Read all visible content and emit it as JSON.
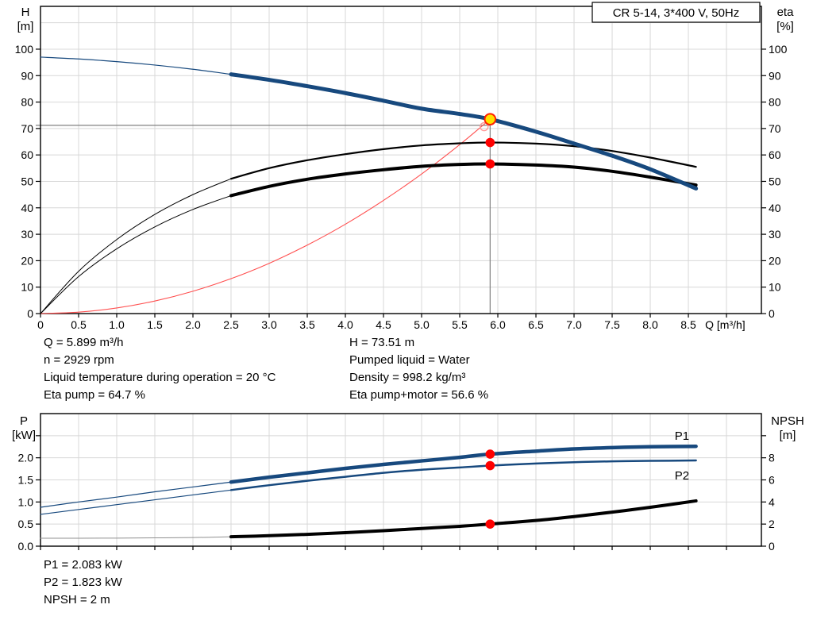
{
  "info_block": {
    "left": [
      "Q = 5.899 m³/h",
      "n = 2929 rpm",
      "Liquid temperature during operation = 20 °C",
      "Eta pump = 64.7 %"
    ],
    "right": [
      "H = 73.51 m",
      "Pumped liquid = Water",
      "Density = 998.2 kg/m³",
      "Eta pump+motor = 56.6 %"
    ]
  },
  "result_block": [
    "P1 = 2.083 kW",
    "P2 = 1.823 kW",
    "NPSH = 2 m"
  ],
  "colors": {
    "pump_blue": "#17497E",
    "label_blue": "#2E6DB4",
    "grid": "#D8D8D8",
    "crosshair": "#808080",
    "system_red": "#FF5050",
    "dot_red": "#FF0000",
    "duty_yellow": "#FFE000"
  },
  "chart_data": [
    {
      "type": "line",
      "title_box": "CR 5-14, 3*400 V, 50Hz",
      "xlabel": "Q [m³/h]",
      "xlabel_pos": 8.72,
      "ylabel_left_lines": [
        "H",
        "[m]"
      ],
      "ylabel_right_lines": [
        "eta",
        "[%]"
      ],
      "xlim": [
        0,
        9.458
      ],
      "ylim_left": [
        0,
        116.2
      ],
      "ylim_right": [
        0,
        116.2
      ],
      "grid": true,
      "grid_color": "#D8D8D8",
      "x_ticks": {
        "values": [
          0,
          0.5,
          1,
          1.5,
          2,
          2.5,
          3,
          3.5,
          4,
          4.5,
          5,
          5.5,
          6,
          6.5,
          7,
          7.5,
          8,
          8.5,
          9
        ],
        "labels": [
          "0",
          "0.5",
          "1.0",
          "1.5",
          "2.0",
          "2.5",
          "3.0",
          "3.5",
          "4.0",
          "4.5",
          "5.0",
          "5.5",
          "6.0",
          "6.5",
          "7.0",
          "7.5",
          "8.0",
          "8.5",
          ""
        ]
      },
      "y_ticks_left": {
        "values": [
          0,
          10,
          20,
          30,
          40,
          50,
          60,
          70,
          80,
          90,
          100
        ],
        "labels": [
          "0",
          "10",
          "20",
          "30",
          "40",
          "50",
          "60",
          "70",
          "80",
          "90",
          "100"
        ]
      },
      "y_ticks_right": {
        "values": [
          0,
          10,
          20,
          30,
          40,
          50,
          60,
          70,
          80,
          90,
          100
        ],
        "labels": [
          "0",
          "10",
          "20",
          "30",
          "40",
          "50",
          "60",
          "70",
          "80",
          "90",
          "100"
        ]
      },
      "y_grid": [
        10,
        20,
        30,
        40,
        50,
        60,
        70,
        80,
        90,
        100,
        110
      ],
      "crosshair": {
        "h_value": 71.2,
        "x": 5.899,
        "x_top": 73.51,
        "color": "#808080"
      },
      "series": [
        {
          "name": "system-curve",
          "axis": "left",
          "color": "#FF5050",
          "width": 1.1,
          "x": [
            0,
            0.5,
            1,
            1.5,
            2,
            2.5,
            3,
            3.5,
            4,
            4.5,
            5,
            5.5,
            5.899
          ],
          "y": [
            0,
            0.53,
            2.11,
            4.75,
            8.45,
            13.2,
            19.0,
            25.9,
            33.8,
            42.8,
            52.8,
            63.9,
            73.51
          ]
        },
        {
          "name": "eta-pump-low-flow",
          "axis": "right",
          "color": "#000000",
          "width": 1,
          "x": [
            0,
            0.5,
            1,
            1.5,
            2,
            2.5
          ],
          "y": [
            0,
            16,
            28,
            37.5,
            45,
            51
          ]
        },
        {
          "name": "eta-pump",
          "axis": "right",
          "color": "#000000",
          "width": 2.2,
          "x": [
            2.5,
            3,
            3.5,
            4,
            4.5,
            5,
            5.5,
            5.899,
            6.5,
            7,
            7.5,
            8,
            8.6
          ],
          "y": [
            51,
            55,
            58,
            60.3,
            62.2,
            63.6,
            64.4,
            64.7,
            64.3,
            63.3,
            61.5,
            59,
            55.5
          ]
        },
        {
          "name": "eta-pump-motor-low-flow",
          "axis": "right",
          "color": "#000000",
          "width": 1,
          "x": [
            0,
            0.5,
            1,
            1.5,
            2,
            2.5
          ],
          "y": [
            0,
            14,
            24.5,
            32.8,
            39.4,
            44.6
          ]
        },
        {
          "name": "eta-pump-motor",
          "axis": "right",
          "color": "#000000",
          "width": 4,
          "x": [
            2.5,
            3,
            3.5,
            4,
            4.5,
            5,
            5.5,
            5.899,
            6.5,
            7,
            7.5,
            8,
            8.6
          ],
          "y": [
            44.6,
            48.1,
            50.8,
            52.8,
            54.4,
            55.7,
            56.4,
            56.6,
            56.2,
            55.4,
            53.8,
            51.6,
            48.6
          ]
        },
        {
          "name": "hq-curve-low-flow",
          "axis": "left",
          "color": "#17497E",
          "width": 1.2,
          "x": [
            0,
            0.5,
            1,
            1.5,
            2,
            2.5
          ],
          "y": [
            97,
            96.3,
            95.3,
            94,
            92.4,
            90.5
          ]
        },
        {
          "name": "hq-curve",
          "axis": "left",
          "color": "#17497E",
          "width": 5,
          "x": [
            2.5,
            3,
            3.5,
            4,
            4.5,
            5,
            5.5,
            5.899,
            6.5,
            7,
            7.5,
            8,
            8.6
          ],
          "y": [
            90.5,
            88.4,
            86.0,
            83.4,
            80.5,
            77.5,
            75.5,
            73.51,
            68.8,
            64.3,
            59.7,
            54.6,
            47.3
          ]
        }
      ],
      "markers": [
        {
          "name": "target-point",
          "x": 5.82,
          "y": 70.7,
          "axis": "left",
          "r": 5,
          "fill": "none",
          "stroke": "#FF9999",
          "sw": 1.4
        },
        {
          "name": "eta-pump-point",
          "x": 5.899,
          "y": 64.7,
          "axis": "right",
          "r": 5.8,
          "fill": "#FF0000"
        },
        {
          "name": "eta-total-point",
          "x": 5.899,
          "y": 56.6,
          "axis": "right",
          "r": 5.8,
          "fill": "#FF0000"
        },
        {
          "name": "duty-point",
          "x": 5.899,
          "y": 73.51,
          "axis": "left",
          "r": 6.8,
          "fill": "#FFE000",
          "stroke": "#FF2000",
          "sw": 2
        }
      ],
      "annotations": []
    },
    {
      "type": "line",
      "title_box": "",
      "xlabel": "",
      "ylabel_left_lines": [
        "P",
        "[kW]"
      ],
      "ylabel_right_lines": [
        "NPSH",
        "[m]"
      ],
      "xlim": [
        0,
        9.458
      ],
      "ylim_left": [
        0,
        3.0
      ],
      "ylim_right": [
        0,
        12.0
      ],
      "grid": true,
      "grid_color": "#D8D8D8",
      "x_ticks": {
        "values": [
          0,
          0.5,
          1,
          1.5,
          2,
          2.5,
          3,
          3.5,
          4,
          4.5,
          5,
          5.5,
          6,
          6.5,
          7,
          7.5,
          8,
          8.5,
          9
        ],
        "labels": [
          "",
          "",
          "",
          "",
          "",
          "",
          "",
          "",
          "",
          "",
          "",
          "",
          "",
          "",
          "",
          "",
          "",
          "",
          ""
        ]
      },
      "y_ticks_left": {
        "values": [
          0,
          0.5,
          1,
          1.5,
          2,
          2.5
        ],
        "labels": [
          "0.0",
          "0.5",
          "1.0",
          "1.5",
          "2.0",
          ""
        ]
      },
      "y_ticks_right": {
        "values": [
          0,
          2,
          4,
          6,
          8,
          10
        ],
        "labels": [
          "0",
          "2",
          "4",
          "6",
          "8",
          ""
        ]
      },
      "y_grid": [
        0.5,
        1,
        1.5,
        2,
        2.5
      ],
      "crosshair": null,
      "series": [
        {
          "name": "p1-low-flow",
          "axis": "left",
          "color": "#17497E",
          "width": 1.2,
          "x": [
            0,
            0.5,
            1,
            1.5,
            2,
            2.5
          ],
          "y": [
            0.88,
            1.0,
            1.11,
            1.23,
            1.34,
            1.45
          ]
        },
        {
          "name": "p1-curve",
          "axis": "left",
          "color": "#17497E",
          "width": 4.5,
          "x": [
            2.5,
            3,
            3.5,
            4,
            4.5,
            5,
            5.5,
            5.899,
            6.5,
            7,
            7.5,
            8,
            8.6
          ],
          "y": [
            1.45,
            1.56,
            1.66,
            1.76,
            1.85,
            1.93,
            2.01,
            2.083,
            2.15,
            2.2,
            2.23,
            2.25,
            2.26
          ]
        },
        {
          "name": "p2-low-flow",
          "axis": "left",
          "color": "#17497E",
          "width": 1.2,
          "x": [
            0,
            0.5,
            1,
            1.5,
            2,
            2.5
          ],
          "y": [
            0.72,
            0.83,
            0.94,
            1.05,
            1.16,
            1.27
          ]
        },
        {
          "name": "p2-curve",
          "axis": "left",
          "color": "#17497E",
          "width": 2.5,
          "x": [
            2.5,
            3,
            3.5,
            4,
            4.5,
            5,
            5.5,
            5.899,
            6.5,
            7,
            7.5,
            8,
            8.6
          ],
          "y": [
            1.27,
            1.38,
            1.48,
            1.57,
            1.66,
            1.73,
            1.78,
            1.823,
            1.87,
            1.9,
            1.92,
            1.93,
            1.94
          ]
        },
        {
          "name": "npsh-low-flow",
          "axis": "right",
          "color": "#909090",
          "width": 1,
          "x": [
            0,
            0.5,
            1,
            1.5,
            2,
            2.5
          ],
          "y": [
            0.72,
            0.72,
            0.73,
            0.75,
            0.78,
            0.85
          ]
        },
        {
          "name": "npsh-curve",
          "axis": "right",
          "color": "#000000",
          "width": 4,
          "x": [
            2.5,
            3,
            3.5,
            4,
            4.5,
            5,
            5.5,
            5.899,
            6.5,
            7,
            7.5,
            8,
            8.6
          ],
          "y": [
            0.85,
            0.95,
            1.07,
            1.22,
            1.4,
            1.6,
            1.8,
            2.0,
            2.33,
            2.68,
            3.08,
            3.52,
            4.1
          ]
        }
      ],
      "markers": [
        {
          "name": "p1-point",
          "x": 5.899,
          "y": 2.083,
          "axis": "left",
          "r": 5.8,
          "fill": "#FF0000"
        },
        {
          "name": "p2-point",
          "x": 5.899,
          "y": 1.823,
          "axis": "left",
          "r": 5.8,
          "fill": "#FF0000"
        },
        {
          "name": "npsh-point",
          "x": 5.899,
          "y": 2,
          "axis": "right",
          "r": 5.8,
          "fill": "#FF0000"
        }
      ],
      "annotations": [
        {
          "text": "P1",
          "x": 8.32,
          "y": 2.5,
          "color": "#2E6DB4"
        },
        {
          "text": "P2",
          "x": 8.32,
          "y": 1.6,
          "color": "#2E6DB4"
        }
      ]
    }
  ]
}
